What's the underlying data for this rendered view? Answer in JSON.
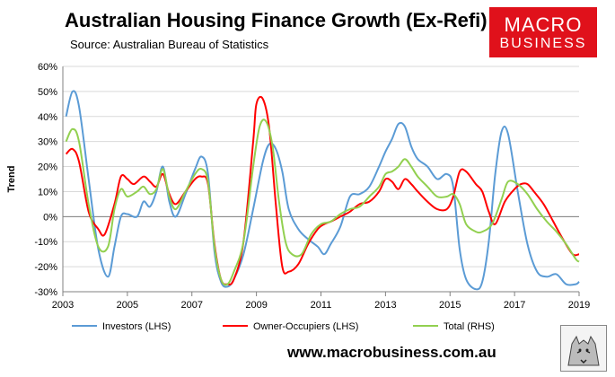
{
  "header": {
    "title": "Australian Housing Finance Growth (Ex-Refi)",
    "source": "Source: Australian Bureau of Statistics"
  },
  "logo": {
    "line1": "MACRO",
    "line2": "BUSINESS"
  },
  "footer": {
    "url": "www.macrobusiness.com.au"
  },
  "colors": {
    "investors": "#5b9bd5",
    "owner_occupiers": "#ff0000",
    "total": "#92d050",
    "logo_bg": "#e0111b"
  },
  "chart_data": {
    "type": "line",
    "title": "Australian Housing Finance Growth (Ex-Refi)",
    "ylabel": "Trend",
    "xlabel": "",
    "xlim": [
      2003,
      2019
    ],
    "ylim": [
      -30,
      60
    ],
    "y_ticks": [
      -30,
      -20,
      -10,
      0,
      10,
      20,
      30,
      40,
      50,
      60
    ],
    "y_tick_labels": [
      "-30%",
      "-20%",
      "-10%",
      "0%",
      "10%",
      "20%",
      "30%",
      "40%",
      "50%",
      "60%"
    ],
    "x_ticks": [
      2003,
      2005,
      2007,
      2009,
      2011,
      2013,
      2015,
      2017,
      2019
    ],
    "x_tick_labels": [
      "2003",
      "2005",
      "2007",
      "2009",
      "2011",
      "2013",
      "2015",
      "2017",
      "2019"
    ],
    "legend_position": "bottom",
    "series": [
      {
        "name": "Investors (LHS)",
        "x": [
          2003.1,
          2003.3,
          2003.5,
          2003.8,
          2004.1,
          2004.4,
          2004.6,
          2004.8,
          2005.0,
          2005.3,
          2005.5,
          2005.7,
          2005.9,
          2006.1,
          2006.3,
          2006.5,
          2006.8,
          2007.1,
          2007.3,
          2007.5,
          2007.7,
          2007.9,
          2008.1,
          2008.3,
          2008.6,
          2008.9,
          2009.2,
          2009.4,
          2009.6,
          2009.8,
          2010.0,
          2010.3,
          2010.6,
          2010.9,
          2011.1,
          2011.3,
          2011.6,
          2011.9,
          2012.2,
          2012.5,
          2012.8,
          2013.0,
          2013.2,
          2013.4,
          2013.6,
          2013.8,
          2014.0,
          2014.3,
          2014.6,
          2014.9,
          2015.1,
          2015.3,
          2015.5,
          2015.8,
          2016.0,
          2016.2,
          2016.4,
          2016.6,
          2016.8,
          2017.1,
          2017.4,
          2017.7,
          2018.0,
          2018.3,
          2018.6,
          2018.9,
          2019.0
        ],
        "values": [
          40,
          50,
          44,
          15,
          -13,
          -24,
          -12,
          0,
          1,
          0,
          6,
          4,
          10,
          20,
          6,
          0,
          9,
          19,
          24,
          17,
          -14,
          -26,
          -28,
          -25,
          -15,
          3,
          22,
          29,
          27,
          18,
          3,
          -5,
          -9,
          -12,
          -15,
          -11,
          -4,
          8,
          9,
          12,
          20,
          26,
          31,
          37,
          36,
          28,
          23,
          20,
          15,
          17,
          12,
          -13,
          -25,
          -29,
          -26,
          -10,
          17,
          34,
          33,
          10,
          -11,
          -22,
          -24,
          -23,
          -27,
          -27,
          -26
        ]
      },
      {
        "name": "Owner-Occupiers (LHS)",
        "x": [
          2003.1,
          2003.3,
          2003.5,
          2003.8,
          2004.1,
          2004.3,
          2004.6,
          2004.8,
          2005.0,
          2005.2,
          2005.5,
          2005.7,
          2005.9,
          2006.1,
          2006.3,
          2006.5,
          2006.8,
          2007.1,
          2007.3,
          2007.5,
          2007.7,
          2007.9,
          2008.1,
          2008.3,
          2008.6,
          2008.9,
          2009.0,
          2009.2,
          2009.4,
          2009.6,
          2009.8,
          2010.0,
          2010.3,
          2010.6,
          2010.9,
          2011.1,
          2011.3,
          2011.6,
          2011.9,
          2012.2,
          2012.5,
          2012.8,
          2013.0,
          2013.2,
          2013.4,
          2013.6,
          2013.8,
          2014.0,
          2014.3,
          2014.6,
          2014.9,
          2015.1,
          2015.3,
          2015.5,
          2015.8,
          2016.0,
          2016.2,
          2016.4,
          2016.7,
          2017.0,
          2017.2,
          2017.4,
          2017.6,
          2017.9,
          2018.2,
          2018.5,
          2018.8,
          2019.0
        ],
        "values": [
          25,
          27,
          22,
          2,
          -5,
          -7,
          5,
          16,
          15,
          13,
          16,
          14,
          12,
          17,
          9,
          5,
          10,
          15,
          16,
          13,
          -11,
          -25,
          -27,
          -25,
          -10,
          30,
          45,
          47,
          35,
          5,
          -20,
          -22,
          -19,
          -11,
          -5,
          -3,
          -2,
          0,
          2,
          5,
          6,
          10,
          15,
          14,
          11,
          15,
          13,
          10,
          6,
          3,
          3,
          8,
          18,
          18,
          13,
          10,
          2,
          -3,
          6,
          11,
          13,
          13,
          10,
          5,
          -2,
          -9,
          -15,
          -15
        ]
      },
      {
        "name": "Total (RHS)",
        "x": [
          2003.1,
          2003.3,
          2003.5,
          2003.8,
          2004.1,
          2004.4,
          2004.6,
          2004.8,
          2005.0,
          2005.3,
          2005.5,
          2005.7,
          2005.9,
          2006.1,
          2006.3,
          2006.5,
          2006.8,
          2007.1,
          2007.3,
          2007.5,
          2007.7,
          2007.9,
          2008.1,
          2008.3,
          2008.6,
          2008.9,
          2009.1,
          2009.3,
          2009.5,
          2009.7,
          2009.9,
          2010.1,
          2010.4,
          2010.7,
          2011.0,
          2011.3,
          2011.6,
          2011.9,
          2012.2,
          2012.5,
          2012.8,
          2013.0,
          2013.2,
          2013.4,
          2013.6,
          2013.8,
          2014.0,
          2014.3,
          2014.6,
          2014.9,
          2015.1,
          2015.3,
          2015.5,
          2015.8,
          2016.0,
          2016.3,
          2016.6,
          2016.8,
          2017.1,
          2017.4,
          2017.7,
          2018.0,
          2018.3,
          2018.6,
          2018.9,
          2019.0
        ],
        "values": [
          30,
          35,
          30,
          5,
          -12,
          -12,
          3,
          11,
          8,
          10,
          12,
          9,
          11,
          19,
          8,
          3,
          10,
          17,
          19,
          14,
          -12,
          -25,
          -27,
          -22,
          -10,
          20,
          36,
          38,
          28,
          6,
          -10,
          -15,
          -15,
          -7,
          -3,
          -2,
          1,
          3,
          4,
          8,
          12,
          17,
          18,
          20,
          23,
          20,
          16,
          12,
          8,
          8,
          9,
          5,
          -3,
          -6,
          -6,
          -3,
          7,
          14,
          13,
          9,
          3,
          -2,
          -6,
          -11,
          -17,
          -18
        ]
      }
    ]
  }
}
